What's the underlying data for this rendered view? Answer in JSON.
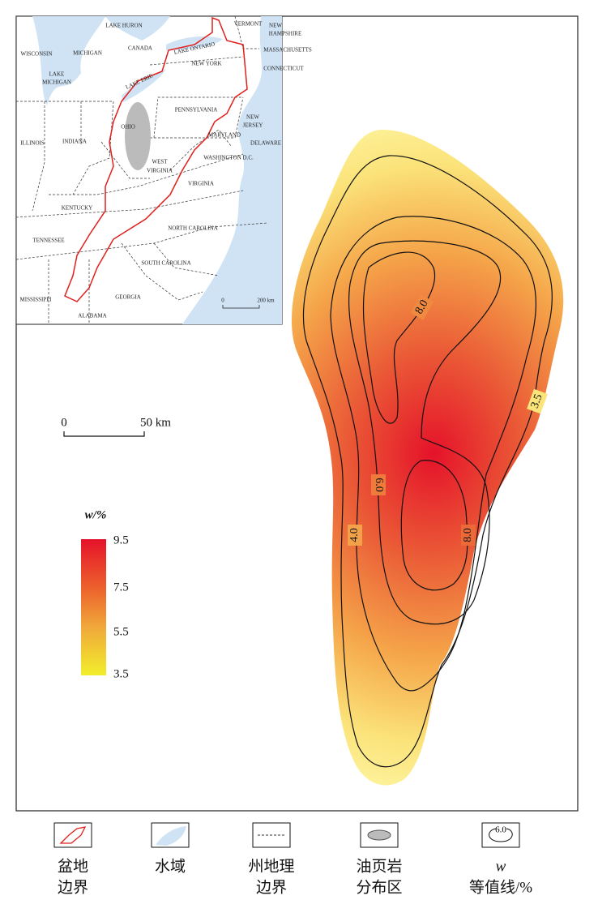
{
  "inset_map": {
    "labels": [
      "LAKE HURON",
      "VERMONT",
      "NEW",
      "HAMPSHIRE",
      "WISCONSIN",
      "MICHIGAN",
      "CANADA",
      "LAKE ONTARIO",
      "NEW YORK",
      "MASSACHUSETTS",
      "CONNECTICUT",
      "LAKE",
      "MICHIGAN",
      "LAKE ERIE",
      "PENNSYLVANIA",
      "OHIO",
      "NEW",
      "JERSEY",
      "ILLINOIS",
      "INDIANA",
      "MARYLAND",
      "DELAWARE",
      "WEST",
      "VIRGINIA",
      "WASHINGTON D.C.",
      "VIRGINIA",
      "KENTUCKY",
      "NORTH CAROLINA",
      "TENNESSEE",
      "SOUTH CAROLINA",
      "MISSISSIPPI",
      "GEORGIA",
      "ALABAMA"
    ],
    "scale": {
      "zero": "0",
      "label": "200 km"
    }
  },
  "main_map": {
    "scale": {
      "zero": "0",
      "label": "50 km"
    },
    "contour_labels": [
      "8.0",
      "8.0",
      "6.0",
      "4.0",
      "3.5"
    ]
  },
  "colorbar": {
    "title": "w/%",
    "ticks": [
      "9.5",
      "7.5",
      "5.5",
      "3.5"
    ]
  },
  "legend": {
    "icon_text": "6.0",
    "items": [
      {
        "lines": [
          "盆地",
          "边界"
        ]
      },
      {
        "lines": [
          "水域"
        ]
      },
      {
        "lines": [
          "州地理",
          "边界"
        ]
      },
      {
        "lines": [
          "油页岩",
          "分布区"
        ]
      },
      {
        "lines": [
          "w",
          "等值线/%"
        ]
      }
    ]
  }
}
